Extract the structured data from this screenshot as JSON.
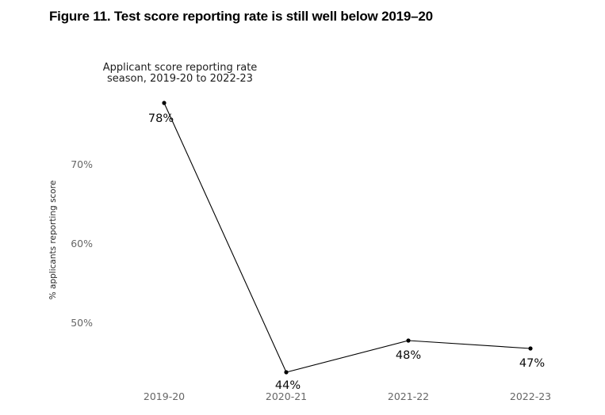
{
  "figure_title": "Figure 11. Test score reporting rate is still well below 2019–20",
  "chart_data": {
    "type": "line",
    "title": "Applicant score reporting rate",
    "subtitle": "season, 2019-20 to 2022-23",
    "categories": [
      "2019-20",
      "2020-21",
      "2021-22",
      "2022-23"
    ],
    "series": [
      {
        "name": "% applicants reporting score",
        "values": [
          78,
          44,
          48,
          47
        ]
      }
    ],
    "point_labels": [
      "78%",
      "44%",
      "48%",
      "47%"
    ],
    "xlabel": "",
    "ylabel": "% applicants reporting score",
    "yticks": [
      {
        "value": 70,
        "label": "70%"
      },
      {
        "value": 60,
        "label": "60%"
      },
      {
        "value": 50,
        "label": "50%"
      }
    ],
    "ylim": [
      42,
      80
    ],
    "grid": "off",
    "legend": "none",
    "line_color": "#000000",
    "point_color": "#000000",
    "tick_label_color": "#666666",
    "data_label_color": "#0a0a0a"
  }
}
